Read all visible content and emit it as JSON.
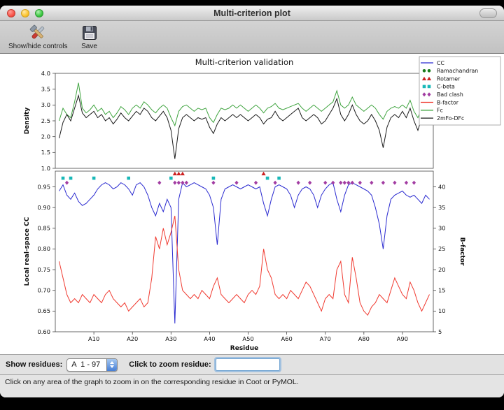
{
  "window": {
    "title": "Multi-criterion plot",
    "toolbar": {
      "show_hide_label": "Show/hide controls",
      "save_label": "Save"
    },
    "controls": {
      "show_residues_label": "Show residues:",
      "residue_range_value": "A  1 - 97",
      "zoom_label": "Click to zoom residue:",
      "zoom_input_value": ""
    },
    "status_text": "Click on any area of the graph to zoom in on the corresponding residue in Coot or PyMOL."
  },
  "legend": {
    "entries": [
      {
        "label": "CC",
        "type": "line",
        "color": "#2a2ad0"
      },
      {
        "label": "Ramachandran",
        "type": "circle",
        "color": "#1a7a1a"
      },
      {
        "label": "Rotamer",
        "type": "triangle",
        "color": "#cc2020"
      },
      {
        "label": "C-beta",
        "type": "square",
        "color": "#19b8b8"
      },
      {
        "label": "Bad clash",
        "type": "diamond",
        "color": "#a23ca2"
      },
      {
        "label": "B-factor",
        "type": "line",
        "color": "#f03a30"
      },
      {
        "label": "Fc",
        "type": "line",
        "color": "#3fa43f"
      },
      {
        "label": "2mFo-DFc",
        "type": "line",
        "color": "#1a1a1a"
      }
    ]
  },
  "chart_data": [
    {
      "type": "line",
      "title": "Multi-criterion validation",
      "ylabel": "Density",
      "ylim": [
        1.0,
        4.0
      ],
      "x_start": 1,
      "yticks": {
        "values": [
          4.0,
          3.5,
          3.0,
          2.5,
          2.0,
          1.5,
          1.0
        ],
        "labels": [
          "4.0",
          "3.5",
          "3.0",
          "2.5",
          "2.0",
          "1.5",
          "1.0"
        ]
      },
      "series": [
        {
          "name": "Fc",
          "color": "#3fa43f",
          "values": [
            2.5,
            2.9,
            2.7,
            2.6,
            3.1,
            3.7,
            2.9,
            2.75,
            2.85,
            3.0,
            2.8,
            2.9,
            2.7,
            2.8,
            2.6,
            2.75,
            2.95,
            2.85,
            2.7,
            2.9,
            3.0,
            2.9,
            3.1,
            3.0,
            2.85,
            2.75,
            2.9,
            3.0,
            2.9,
            2.6,
            2.35,
            2.8,
            2.95,
            3.0,
            2.9,
            2.8,
            2.9,
            2.85,
            2.9,
            2.6,
            2.45,
            2.7,
            2.9,
            2.85,
            2.9,
            3.0,
            2.9,
            3.0,
            2.9,
            2.8,
            2.9,
            3.0,
            2.9,
            2.75,
            2.9,
            2.95,
            3.05,
            2.9,
            2.85,
            2.9,
            2.95,
            3.0,
            3.05,
            2.9,
            2.8,
            2.9,
            3.0,
            2.9,
            2.8,
            2.9,
            3.0,
            3.1,
            3.45,
            3.0,
            2.9,
            3.0,
            3.25,
            3.0,
            2.9,
            2.8,
            2.9,
            3.0,
            2.9,
            2.7,
            2.55,
            2.8,
            2.9,
            2.95,
            2.9,
            3.0,
            2.9,
            3.15,
            2.8,
            2.6,
            2.9,
            3.35,
            3.05
          ]
        },
        {
          "name": "2mFo-DFc",
          "color": "#1a1a1a",
          "values": [
            1.95,
            2.45,
            2.7,
            2.5,
            2.9,
            3.3,
            2.75,
            2.6,
            2.7,
            2.8,
            2.6,
            2.7,
            2.5,
            2.6,
            2.4,
            2.55,
            2.75,
            2.6,
            2.5,
            2.65,
            2.8,
            2.7,
            2.9,
            2.8,
            2.6,
            2.5,
            2.65,
            2.8,
            2.6,
            2.2,
            1.3,
            2.25,
            2.6,
            2.7,
            2.6,
            2.5,
            2.6,
            2.55,
            2.6,
            2.3,
            2.1,
            2.4,
            2.6,
            2.5,
            2.6,
            2.7,
            2.6,
            2.7,
            2.6,
            2.5,
            2.6,
            2.7,
            2.6,
            2.4,
            2.55,
            2.6,
            2.8,
            2.6,
            2.5,
            2.6,
            2.7,
            2.8,
            2.9,
            2.6,
            2.5,
            2.6,
            2.7,
            2.6,
            2.4,
            2.5,
            2.7,
            2.9,
            3.2,
            2.7,
            2.5,
            2.7,
            3.0,
            2.7,
            2.5,
            2.4,
            2.5,
            2.7,
            2.5,
            2.2,
            1.65,
            2.3,
            2.6,
            2.7,
            2.6,
            2.8,
            2.6,
            2.9,
            2.5,
            2.2,
            2.6,
            3.2,
            2.9
          ]
        }
      ]
    },
    {
      "type": "line+scatter",
      "xlabel": "Residue",
      "ylabel": "Local real-space CC",
      "y2label": "B-factor",
      "xlim": [
        0,
        98
      ],
      "x_start": 1,
      "ylim": [
        0.6,
        0.988
      ],
      "y2lim": [
        5,
        43.8
      ],
      "yticks": {
        "values": [
          0.95,
          0.9,
          0.85,
          0.8,
          0.75,
          0.7,
          0.65,
          0.6
        ],
        "labels": [
          "0.95",
          "0.90",
          "0.85",
          "0.80",
          "0.75",
          "0.70",
          "0.65",
          "0.60"
        ]
      },
      "y2ticks": {
        "values": [
          40,
          35,
          30,
          25,
          20,
          15,
          10,
          5
        ],
        "labels": [
          "40",
          "35",
          "30",
          "25",
          "20",
          "15",
          "10",
          "5"
        ]
      },
      "xticks": {
        "values": [
          10,
          20,
          30,
          40,
          50,
          60,
          70,
          80,
          90
        ],
        "labels": [
          "A10",
          "A20",
          "A30",
          "A40",
          "A50",
          "A60",
          "A70",
          "A80",
          "A90"
        ]
      },
      "series": [
        {
          "name": "CC",
          "axis": "y",
          "color": "#2a2ad0",
          "values": [
            0.94,
            0.955,
            0.93,
            0.92,
            0.935,
            0.915,
            0.905,
            0.91,
            0.92,
            0.93,
            0.945,
            0.955,
            0.96,
            0.955,
            0.945,
            0.95,
            0.96,
            0.955,
            0.945,
            0.93,
            0.955,
            0.96,
            0.95,
            0.93,
            0.9,
            0.88,
            0.91,
            0.89,
            0.92,
            0.9,
            0.62,
            0.92,
            0.96,
            0.95,
            0.955,
            0.96,
            0.955,
            0.95,
            0.945,
            0.93,
            0.9,
            0.81,
            0.92,
            0.945,
            0.95,
            0.955,
            0.95,
            0.945,
            0.95,
            0.955,
            0.95,
            0.945,
            0.95,
            0.91,
            0.88,
            0.92,
            0.95,
            0.955,
            0.95,
            0.945,
            0.93,
            0.9,
            0.93,
            0.945,
            0.95,
            0.945,
            0.93,
            0.9,
            0.93,
            0.945,
            0.955,
            0.96,
            0.92,
            0.89,
            0.93,
            0.955,
            0.96,
            0.955,
            0.95,
            0.945,
            0.94,
            0.93,
            0.9,
            0.86,
            0.8,
            0.88,
            0.92,
            0.93,
            0.935,
            0.94,
            0.93,
            0.925,
            0.93,
            0.92,
            0.91,
            0.93,
            0.92
          ]
        },
        {
          "name": "B-factor",
          "axis": "y2",
          "color": "#f03a30",
          "values": [
            22,
            18,
            14,
            12,
            13,
            12,
            14,
            13,
            12,
            14,
            13,
            12,
            14,
            15,
            13,
            12,
            11,
            12,
            10,
            11,
            12,
            13,
            11,
            12,
            18,
            28,
            25,
            30,
            26,
            29,
            33,
            20,
            15,
            14,
            13,
            14,
            13,
            15,
            14,
            13,
            16,
            18,
            14,
            13,
            12,
            13,
            14,
            13,
            12,
            14,
            15,
            14,
            16,
            25,
            20,
            18,
            14,
            13,
            14,
            13,
            15,
            14,
            13,
            15,
            17,
            16,
            14,
            12,
            10,
            13,
            14,
            13,
            20,
            22,
            14,
            12,
            23,
            18,
            12,
            10,
            9,
            11,
            12,
            14,
            13,
            12,
            15,
            18,
            16,
            14,
            13,
            17,
            15,
            12,
            10,
            12,
            14
          ]
        }
      ],
      "markers": [
        {
          "name": "Rotamer",
          "shape": "triangle",
          "color": "#cc2020",
          "y": 0.982,
          "residues": [
            31,
            32,
            33,
            54
          ]
        },
        {
          "name": "C-beta",
          "shape": "square",
          "color": "#19b8b8",
          "y": 0.971,
          "residues": [
            2,
            4,
            10,
            19,
            30,
            41,
            55,
            58
          ]
        },
        {
          "name": "Bad clash",
          "shape": "diamond",
          "color": "#a23ca2",
          "y": 0.96,
          "residues": [
            3,
            27,
            31,
            32,
            33,
            34,
            41,
            47,
            52,
            57,
            63,
            66,
            70,
            72,
            74,
            75,
            76,
            77,
            79,
            82,
            85,
            88,
            91,
            93
          ]
        }
      ]
    }
  ]
}
